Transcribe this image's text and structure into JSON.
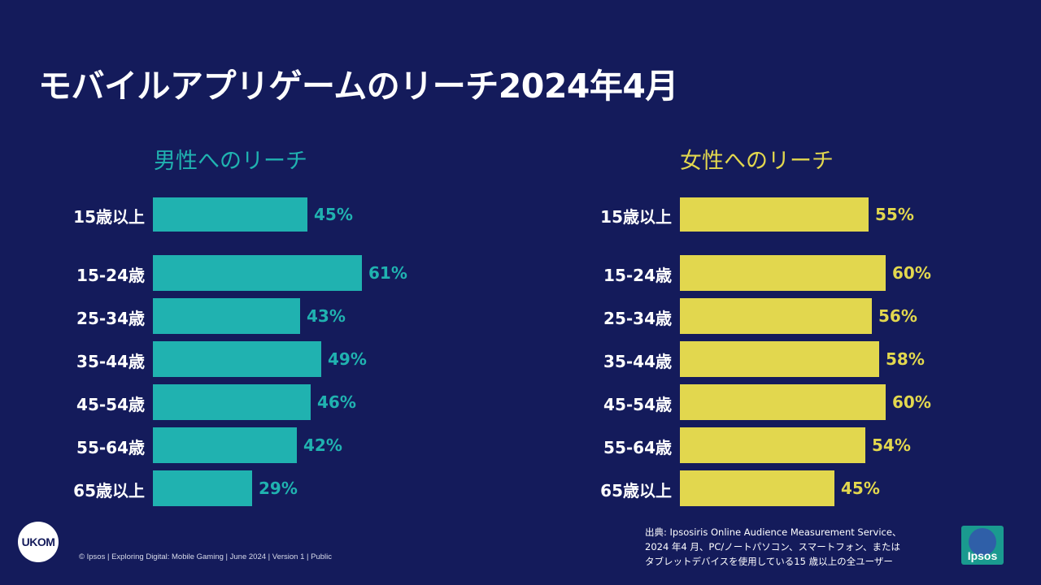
{
  "title": "モバイルアプリゲームのリーチ2024年4月",
  "chart_data": [
    {
      "type": "bar",
      "orientation": "horizontal",
      "title": "男性へのリーチ",
      "color": "#20b2b0",
      "categories": [
        "15歳以上",
        "15-24歳",
        "25-34歳",
        "35-44歳",
        "45-54歳",
        "55-64歳",
        "65歳以上"
      ],
      "values": [
        45,
        61,
        43,
        49,
        46,
        42,
        29
      ],
      "value_labels": [
        "45%",
        "61%",
        "43%",
        "49%",
        "46%",
        "42%",
        "29%"
      ],
      "unit": "%",
      "xlim": [
        0,
        100
      ]
    },
    {
      "type": "bar",
      "orientation": "horizontal",
      "title": "女性へのリーチ",
      "color": "#e2d74e",
      "categories": [
        "15歳以上",
        "15-24歳",
        "25-34歳",
        "35-44歳",
        "45-54歳",
        "55-64歳",
        "65歳以上"
      ],
      "values": [
        55,
        60,
        56,
        58,
        60,
        54,
        45
      ],
      "value_labels": [
        "55%",
        "60%",
        "56%",
        "58%",
        "60%",
        "54%",
        "45%"
      ],
      "unit": "%",
      "xlim": [
        0,
        100
      ]
    }
  ],
  "logos": {
    "ukom": "UKOM",
    "ipsos": "Ipsos"
  },
  "footer": "© Ipsos | Exploring Digital: Mobile Gaming | June 2024 | Version 1 | Public",
  "source": [
    "出典: Ipsosiris Online Audience Measurement Service、",
    "2024 年4 月、PC/ノートパソコン、スマートフォン、または",
    "タブレットデバイスを使用している15 歳以上の全ユーザー"
  ]
}
